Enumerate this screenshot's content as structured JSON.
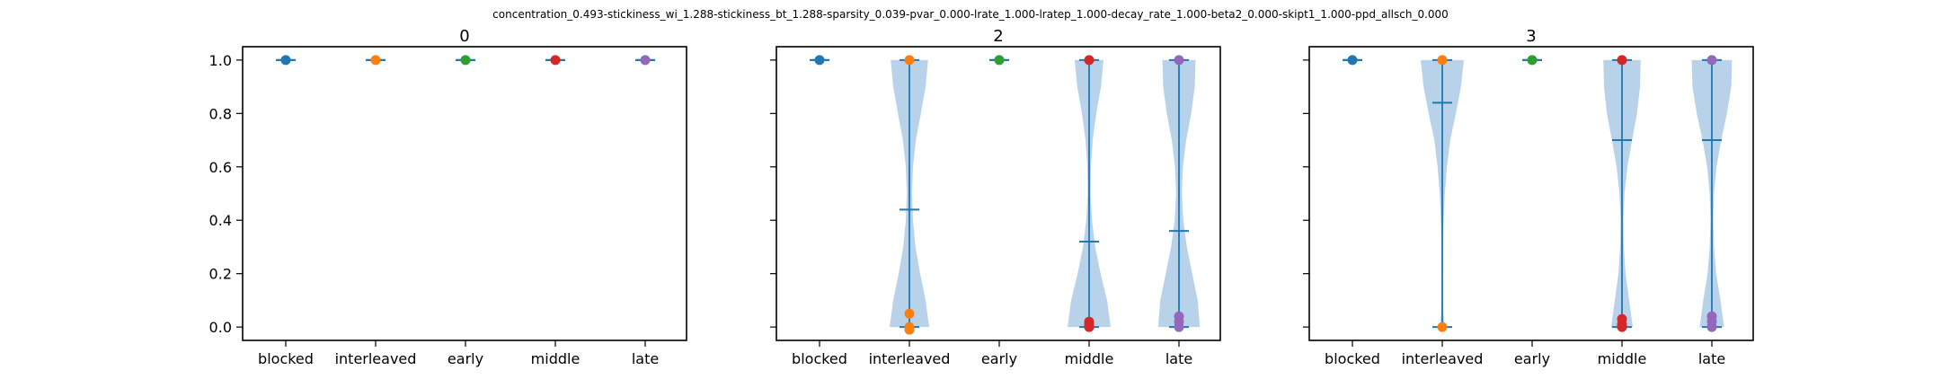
{
  "figure": {
    "suptitle": "concentration_0.493-stickiness_wi_1.288-stickiness_bt_1.288-sparsity_0.039-pvar_0.000-lrate_1.000-lratep_1.000-decay_rate_1.000-beta2_0.000-skipt1_1.000-ppd_allsch_0.000"
  },
  "chart_data": [
    {
      "type": "violin",
      "title": "0",
      "categories": [
        "blocked",
        "interleaved",
        "early",
        "middle",
        "late"
      ],
      "ylim": [
        -0.05,
        1.05
      ],
      "yticks": [
        "0.0",
        "0.2",
        "0.4",
        "0.6",
        "0.8",
        "1.0"
      ],
      "grid": false,
      "series": [
        {
          "category": "blocked",
          "min": 1.0,
          "max": 1.0,
          "mean": 1.0,
          "points": [
            1.0
          ]
        },
        {
          "category": "interleaved",
          "min": 1.0,
          "max": 1.0,
          "mean": 1.0,
          "points": [
            1.0
          ]
        },
        {
          "category": "early",
          "min": 1.0,
          "max": 1.0,
          "mean": 1.0,
          "points": [
            1.0
          ]
        },
        {
          "category": "middle",
          "min": 1.0,
          "max": 1.0,
          "mean": 1.0,
          "points": [
            1.0
          ]
        },
        {
          "category": "late",
          "min": 1.0,
          "max": 1.0,
          "mean": 1.0,
          "points": [
            1.0
          ]
        }
      ]
    },
    {
      "type": "violin",
      "title": "2",
      "categories": [
        "blocked",
        "interleaved",
        "early",
        "middle",
        "late"
      ],
      "ylim": [
        -0.05,
        1.05
      ],
      "yticks": [
        "0.0",
        "0.2",
        "0.4",
        "0.6",
        "0.8",
        "1.0"
      ],
      "grid": false,
      "series": [
        {
          "category": "blocked",
          "min": 1.0,
          "max": 1.0,
          "mean": 1.0,
          "points": [
            1.0
          ]
        },
        {
          "category": "interleaved",
          "min": 0.0,
          "max": 1.0,
          "mean": 0.44,
          "points": [
            1.0,
            0.05,
            0.0,
            -0.01
          ],
          "density": [
            [
              0.0,
              0.55
            ],
            [
              0.1,
              0.45
            ],
            [
              0.2,
              0.3
            ],
            [
              0.3,
              0.17
            ],
            [
              0.4,
              0.1
            ],
            [
              0.5,
              0.07
            ],
            [
              0.6,
              0.1
            ],
            [
              0.7,
              0.18
            ],
            [
              0.8,
              0.32
            ],
            [
              0.9,
              0.45
            ],
            [
              1.0,
              0.52
            ]
          ]
        },
        {
          "category": "early",
          "min": 1.0,
          "max": 1.0,
          "mean": 1.0,
          "points": [
            1.0
          ]
        },
        {
          "category": "middle",
          "min": 0.0,
          "max": 1.0,
          "mean": 0.32,
          "points": [
            1.0,
            0.02,
            0.01,
            0.0
          ],
          "density": [
            [
              0.0,
              0.6
            ],
            [
              0.1,
              0.5
            ],
            [
              0.2,
              0.32
            ],
            [
              0.3,
              0.17
            ],
            [
              0.4,
              0.08
            ],
            [
              0.5,
              0.04
            ],
            [
              0.6,
              0.05
            ],
            [
              0.7,
              0.1
            ],
            [
              0.8,
              0.2
            ],
            [
              0.9,
              0.33
            ],
            [
              1.0,
              0.4
            ]
          ]
        },
        {
          "category": "late",
          "min": 0.0,
          "max": 1.0,
          "mean": 0.36,
          "points": [
            1.0,
            0.04,
            0.02,
            0.0
          ],
          "density": [
            [
              0.0,
              0.58
            ],
            [
              0.1,
              0.52
            ],
            [
              0.2,
              0.37
            ],
            [
              0.3,
              0.22
            ],
            [
              0.4,
              0.12
            ],
            [
              0.5,
              0.08
            ],
            [
              0.6,
              0.11
            ],
            [
              0.7,
              0.2
            ],
            [
              0.8,
              0.34
            ],
            [
              0.9,
              0.44
            ],
            [
              1.0,
              0.46
            ]
          ]
        }
      ]
    },
    {
      "type": "violin",
      "title": "3",
      "categories": [
        "blocked",
        "interleaved",
        "early",
        "middle",
        "late"
      ],
      "ylim": [
        -0.05,
        1.05
      ],
      "yticks": [
        "0.0",
        "0.2",
        "0.4",
        "0.6",
        "0.8",
        "1.0"
      ],
      "grid": false,
      "series": [
        {
          "category": "blocked",
          "min": 1.0,
          "max": 1.0,
          "mean": 1.0,
          "points": [
            1.0
          ]
        },
        {
          "category": "interleaved",
          "min": 0.0,
          "max": 1.0,
          "mean": 0.84,
          "points": [
            1.0,
            0.0
          ],
          "density": [
            [
              0.0,
              0.06
            ],
            [
              0.05,
              0.03
            ],
            [
              0.1,
              0.02
            ],
            [
              0.2,
              0.015
            ],
            [
              0.3,
              0.02
            ],
            [
              0.4,
              0.04
            ],
            [
              0.5,
              0.07
            ],
            [
              0.6,
              0.13
            ],
            [
              0.7,
              0.22
            ],
            [
              0.8,
              0.38
            ],
            [
              0.9,
              0.52
            ],
            [
              1.0,
              0.6
            ]
          ]
        },
        {
          "category": "middle",
          "min": 0.0,
          "max": 1.0,
          "mean": 0.7,
          "points": [
            1.0,
            0.03,
            0.01,
            0.0
          ],
          "density": [
            [
              0.0,
              0.3
            ],
            [
              0.1,
              0.2
            ],
            [
              0.2,
              0.1
            ],
            [
              0.3,
              0.05
            ],
            [
              0.4,
              0.04
            ],
            [
              0.5,
              0.07
            ],
            [
              0.6,
              0.15
            ],
            [
              0.7,
              0.28
            ],
            [
              0.8,
              0.42
            ],
            [
              0.9,
              0.5
            ],
            [
              1.0,
              0.52
            ]
          ]
        },
        {
          "category": "early",
          "min": 1.0,
          "max": 1.0,
          "mean": 1.0,
          "points": [
            1.0
          ]
        },
        {
          "category": "late",
          "min": 0.0,
          "max": 1.0,
          "mean": 0.7,
          "points": [
            1.0,
            0.04,
            0.02,
            0.0
          ],
          "density": [
            [
              0.0,
              0.34
            ],
            [
              0.1,
              0.24
            ],
            [
              0.2,
              0.12
            ],
            [
              0.3,
              0.06
            ],
            [
              0.4,
              0.04
            ],
            [
              0.5,
              0.06
            ],
            [
              0.6,
              0.13
            ],
            [
              0.7,
              0.26
            ],
            [
              0.8,
              0.42
            ],
            [
              0.9,
              0.54
            ],
            [
              1.0,
              0.56
            ]
          ]
        }
      ]
    }
  ],
  "colors": {
    "violin_fill": "#a6c8e3",
    "violin_line": "#1f77b4",
    "series": [
      "#1f77b4",
      "#ff7f0e",
      "#2ca02c",
      "#d62728",
      "#9467bd"
    ]
  }
}
